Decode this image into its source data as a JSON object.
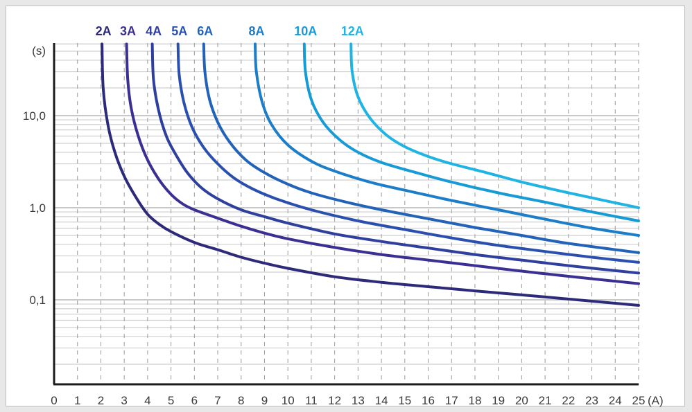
{
  "chart_data": {
    "type": "line",
    "title": "",
    "xlabel": "(A)",
    "ylabel": "(s)",
    "x_scale": "linear",
    "y_scale": "log",
    "xlim": [
      0,
      25
    ],
    "ylim": [
      0.015,
      60
    ],
    "x_ticks": [
      "0",
      "1",
      "2",
      "3",
      "4",
      "5",
      "6",
      "7",
      "8",
      "9",
      "10",
      "11",
      "12",
      "13",
      "14",
      "15",
      "16",
      "17",
      "18",
      "19",
      "20",
      "21",
      "22",
      "23",
      "24",
      "25"
    ],
    "y_ticks": [
      {
        "value": 10,
        "label": "10,0"
      },
      {
        "value": 1,
        "label": "1,0"
      },
      {
        "value": 0.1,
        "label": "0,1"
      }
    ],
    "grid": {
      "x": "dashed",
      "y": "solid"
    },
    "legend_position": "top",
    "series": [
      {
        "name": "2A",
        "color": "#2e2a7a",
        "points": [
          [
            2.05,
            60
          ],
          [
            2.1,
            20
          ],
          [
            2.3,
            8
          ],
          [
            2.6,
            4
          ],
          [
            3,
            2.2
          ],
          [
            3.5,
            1.3
          ],
          [
            4,
            0.85
          ],
          [
            4.5,
            0.66
          ],
          [
            5,
            0.55
          ],
          [
            6,
            0.42
          ],
          [
            7,
            0.35
          ],
          [
            8,
            0.29
          ],
          [
            9,
            0.25
          ],
          [
            10,
            0.22
          ],
          [
            12,
            0.178
          ],
          [
            14,
            0.155
          ],
          [
            16,
            0.139
          ],
          [
            18,
            0.125
          ],
          [
            20,
            0.113
          ],
          [
            22,
            0.102
          ],
          [
            25,
            0.087
          ]
        ]
      },
      {
        "name": "3A",
        "color": "#3a2f92",
        "points": [
          [
            3.1,
            60
          ],
          [
            3.15,
            25
          ],
          [
            3.3,
            12
          ],
          [
            3.6,
            6
          ],
          [
            4,
            3.3
          ],
          [
            4.5,
            2
          ],
          [
            5,
            1.4
          ],
          [
            5.5,
            1.1
          ],
          [
            6,
            0.95
          ],
          [
            7,
            0.77
          ],
          [
            8,
            0.63
          ],
          [
            9,
            0.53
          ],
          [
            10,
            0.46
          ],
          [
            12,
            0.37
          ],
          [
            14,
            0.31
          ],
          [
            16,
            0.27
          ],
          [
            18,
            0.235
          ],
          [
            20,
            0.205
          ],
          [
            22,
            0.18
          ],
          [
            25,
            0.15
          ]
        ]
      },
      {
        "name": "4A",
        "color": "#2f3f9e",
        "points": [
          [
            4.2,
            60
          ],
          [
            4.25,
            25
          ],
          [
            4.45,
            12
          ],
          [
            4.8,
            6
          ],
          [
            5.2,
            3.8
          ],
          [
            5.7,
            2.4
          ],
          [
            6.3,
            1.65
          ],
          [
            7,
            1.25
          ],
          [
            8,
            0.95
          ],
          [
            9,
            0.8
          ],
          [
            10,
            0.68
          ],
          [
            12,
            0.52
          ],
          [
            14,
            0.43
          ],
          [
            16,
            0.365
          ],
          [
            18,
            0.31
          ],
          [
            20,
            0.27
          ],
          [
            22,
            0.235
          ],
          [
            25,
            0.195
          ]
        ]
      },
      {
        "name": "5A",
        "color": "#2a4fae",
        "points": [
          [
            5.3,
            60
          ],
          [
            5.35,
            28
          ],
          [
            5.55,
            14
          ],
          [
            5.9,
            7.5
          ],
          [
            6.4,
            4.5
          ],
          [
            7,
            3
          ],
          [
            7.7,
            2.1
          ],
          [
            8.5,
            1.6
          ],
          [
            9.5,
            1.25
          ],
          [
            11,
            0.95
          ],
          [
            13,
            0.72
          ],
          [
            15,
            0.58
          ],
          [
            17,
            0.47
          ],
          [
            19,
            0.39
          ],
          [
            21,
            0.335
          ],
          [
            23,
            0.29
          ],
          [
            25,
            0.255
          ]
        ]
      },
      {
        "name": "6A",
        "color": "#2263b9",
        "points": [
          [
            6.4,
            60
          ],
          [
            6.45,
            30
          ],
          [
            6.65,
            15
          ],
          [
            7,
            8.5
          ],
          [
            7.5,
            5.2
          ],
          [
            8.2,
            3.3
          ],
          [
            9,
            2.4
          ],
          [
            10,
            1.8
          ],
          [
            11,
            1.45
          ],
          [
            12.5,
            1.15
          ],
          [
            14,
            0.95
          ],
          [
            16,
            0.76
          ],
          [
            18,
            0.61
          ],
          [
            20,
            0.5
          ],
          [
            22,
            0.41
          ],
          [
            25,
            0.325
          ]
        ]
      },
      {
        "name": "8A",
        "color": "#1c7ec8",
        "points": [
          [
            8.6,
            60
          ],
          [
            8.65,
            30
          ],
          [
            8.9,
            14
          ],
          [
            9.3,
            8
          ],
          [
            10,
            4.8
          ],
          [
            11,
            3.2
          ],
          [
            12,
            2.5
          ],
          [
            13.5,
            1.9
          ],
          [
            15,
            1.55
          ],
          [
            17,
            1.2
          ],
          [
            19,
            0.95
          ],
          [
            21,
            0.75
          ],
          [
            23,
            0.6
          ],
          [
            25,
            0.5
          ]
        ]
      },
      {
        "name": "10A",
        "color": "#179bd6",
        "points": [
          [
            10.7,
            60
          ],
          [
            10.75,
            30
          ],
          [
            11,
            15
          ],
          [
            11.5,
            8.5
          ],
          [
            12.2,
            5.5
          ],
          [
            13,
            4
          ],
          [
            14,
            3.1
          ],
          [
            15.5,
            2.4
          ],
          [
            17,
            1.9
          ],
          [
            19,
            1.45
          ],
          [
            21,
            1.15
          ],
          [
            23,
            0.9
          ],
          [
            25,
            0.72
          ]
        ]
      },
      {
        "name": "12A",
        "color": "#1fb4e3",
        "points": [
          [
            12.7,
            60
          ],
          [
            12.75,
            30
          ],
          [
            13,
            16
          ],
          [
            13.5,
            9.5
          ],
          [
            14.2,
            6.2
          ],
          [
            15,
            4.6
          ],
          [
            16,
            3.6
          ],
          [
            17,
            3
          ],
          [
            18.5,
            2.4
          ],
          [
            20,
            1.9
          ],
          [
            21.5,
            1.55
          ],
          [
            23,
            1.28
          ],
          [
            25,
            1.0
          ]
        ]
      }
    ]
  }
}
